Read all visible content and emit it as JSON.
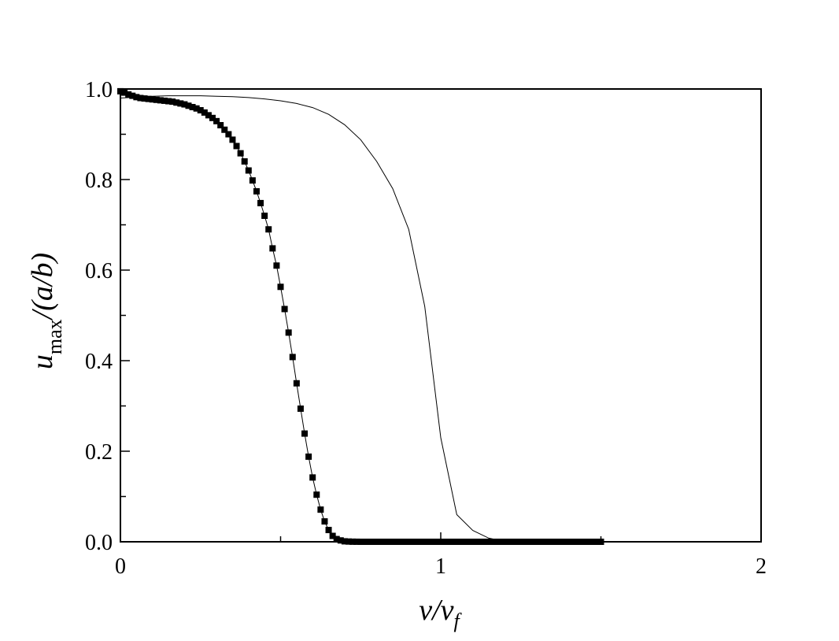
{
  "chart_data": {
    "type": "line",
    "title": "",
    "xlabel": {
      "main": "v/v",
      "sub": "f"
    },
    "ylabel": {
      "main": "u",
      "sub": "max",
      "rest": "/(a/b)"
    },
    "xlim": [
      0,
      2
    ],
    "ylim": [
      0,
      1
    ],
    "xticks": [
      0,
      1,
      2
    ],
    "xtick_labels": [
      "0",
      "1",
      "2"
    ],
    "yticks": [
      0.0,
      0.2,
      0.4,
      0.6,
      0.8,
      1.0
    ],
    "ytick_labels": [
      "0.0",
      "0.2",
      "0.4",
      "0.6",
      "0.8",
      "1.0"
    ],
    "grid": false,
    "series": [
      {
        "style": "line-with-square-markers",
        "x": [
          0.0,
          0.0125,
          0.025,
          0.0375,
          0.05,
          0.0625,
          0.075,
          0.0875,
          0.1,
          0.1125,
          0.125,
          0.1375,
          0.15,
          0.1625,
          0.175,
          0.1875,
          0.2,
          0.2125,
          0.225,
          0.2375,
          0.25,
          0.2625,
          0.275,
          0.2875,
          0.3,
          0.3125,
          0.325,
          0.3375,
          0.35,
          0.3625,
          0.375,
          0.3875,
          0.4,
          0.4125,
          0.425,
          0.4375,
          0.45,
          0.4625,
          0.475,
          0.4875,
          0.5,
          0.5125,
          0.525,
          0.5375,
          0.55,
          0.5625,
          0.575,
          0.5875,
          0.6,
          0.6125,
          0.625,
          0.6375,
          0.65,
          0.6625,
          0.675,
          0.6875,
          0.7,
          0.7125,
          0.725,
          0.7375,
          0.75,
          0.7625,
          0.775,
          0.7875,
          0.8,
          0.8125,
          0.825,
          0.8375,
          0.85,
          0.8625,
          0.875,
          0.8875,
          0.9,
          0.9125,
          0.925,
          0.9375,
          0.95,
          0.9625,
          0.975,
          0.9875,
          1.0,
          1.0125,
          1.025,
          1.0375,
          1.05,
          1.0625,
          1.075,
          1.0875,
          1.1,
          1.1125,
          1.125,
          1.1375,
          1.15,
          1.1625,
          1.175,
          1.1875,
          1.2,
          1.2125,
          1.225,
          1.2375,
          1.25,
          1.2625,
          1.275,
          1.2875,
          1.3,
          1.3125,
          1.325,
          1.3375,
          1.35,
          1.3625,
          1.375,
          1.3875,
          1.4,
          1.4125,
          1.425,
          1.4375,
          1.45,
          1.4625,
          1.475,
          1.4875,
          1.5
        ],
        "y": [
          0.995,
          0.992,
          0.988,
          0.985,
          0.982,
          0.98,
          0.979,
          0.978,
          0.977,
          0.976,
          0.975,
          0.974,
          0.973,
          0.972,
          0.97,
          0.968,
          0.966,
          0.963,
          0.96,
          0.957,
          0.953,
          0.948,
          0.942,
          0.936,
          0.929,
          0.92,
          0.91,
          0.9,
          0.888,
          0.874,
          0.858,
          0.84,
          0.82,
          0.798,
          0.774,
          0.748,
          0.72,
          0.69,
          0.648,
          0.61,
          0.563,
          0.514,
          0.462,
          0.408,
          0.35,
          0.294,
          0.239,
          0.188,
          0.142,
          0.104,
          0.071,
          0.045,
          0.026,
          0.013,
          0.006,
          0.003,
          0.001,
          0.0005,
          0.0002,
          0.0001,
          0.0,
          0.0,
          0.0,
          0.0,
          0.0,
          0.0,
          0.0,
          0.0,
          0.0,
          0.0,
          0.0,
          0.0,
          0.0,
          0.0,
          0.0,
          0.0,
          0.0,
          0.0,
          0.0,
          0.0,
          0.0,
          0.0,
          0.0,
          0.0,
          0.0,
          0.0,
          0.0,
          0.0,
          0.0,
          0.0,
          0.0,
          0.0,
          0.0,
          0.0,
          0.0,
          0.0,
          0.0,
          0.0,
          0.0,
          0.0,
          0.0,
          0.0,
          0.0,
          0.0,
          0.0,
          0.0,
          0.0,
          0.0,
          0.0,
          0.0,
          0.0,
          0.0,
          0.0,
          0.0,
          0.0,
          0.0,
          0.0,
          0.0,
          0.0,
          0.0,
          0.0
        ]
      },
      {
        "style": "line",
        "x": [
          0.0,
          0.05,
          0.1,
          0.15,
          0.2,
          0.25,
          0.3,
          0.35,
          0.4,
          0.45,
          0.5,
          0.55,
          0.6,
          0.65,
          0.7,
          0.75,
          0.8,
          0.85,
          0.9,
          0.95,
          1.0,
          1.05,
          1.1,
          1.15,
          1.2,
          1.3,
          1.4,
          1.5
        ],
        "y": [
          0.98,
          0.982,
          0.984,
          0.985,
          0.985,
          0.985,
          0.984,
          0.983,
          0.981,
          0.978,
          0.974,
          0.968,
          0.959,
          0.944,
          0.921,
          0.888,
          0.84,
          0.78,
          0.69,
          0.52,
          0.23,
          0.06,
          0.025,
          0.008,
          0.001,
          0.0,
          0.0,
          0.0
        ]
      }
    ]
  }
}
